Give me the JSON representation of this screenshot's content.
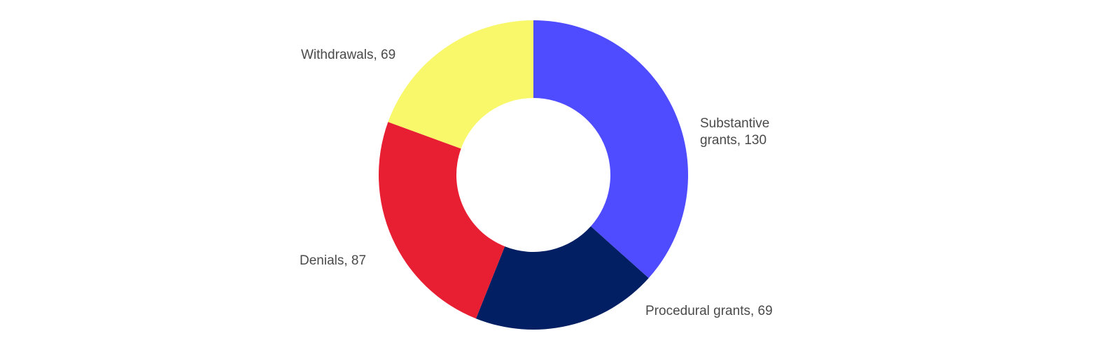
{
  "chart_data": {
    "type": "donut",
    "values": [
      130,
      69,
      87,
      69
    ],
    "value_labels": [
      "Substantive grants, 130",
      "Procedural grants, 69",
      "Denials, 87",
      "Withdrawals, 69"
    ],
    "colors": [
      "#4f4bff",
      "#021f63",
      "#e81f33",
      "#f8f86a"
    ]
  }
}
